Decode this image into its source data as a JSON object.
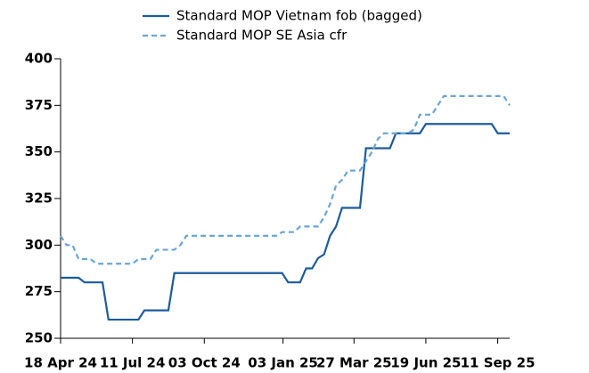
{
  "chart_data": {
    "type": "line",
    "x": [
      "2024-04-18",
      "2024-04-25",
      "2024-05-02",
      "2024-05-09",
      "2024-05-16",
      "2024-05-23",
      "2024-05-30",
      "2024-06-06",
      "2024-06-13",
      "2024-06-20",
      "2024-06-27",
      "2024-07-04",
      "2024-07-11",
      "2024-07-18",
      "2024-07-25",
      "2024-08-01",
      "2024-08-08",
      "2024-08-15",
      "2024-08-22",
      "2024-08-29",
      "2024-09-05",
      "2024-09-12",
      "2024-09-19",
      "2024-09-26",
      "2024-10-03",
      "2024-10-10",
      "2024-10-17",
      "2024-10-24",
      "2024-10-31",
      "2024-11-07",
      "2024-11-14",
      "2024-11-21",
      "2024-11-28",
      "2024-12-05",
      "2024-12-12",
      "2024-12-19",
      "2024-12-26",
      "2025-01-02",
      "2025-01-09",
      "2025-01-16",
      "2025-01-23",
      "2025-01-30",
      "2025-02-06",
      "2025-02-13",
      "2025-02-20",
      "2025-02-27",
      "2025-03-06",
      "2025-03-13",
      "2025-03-20",
      "2025-03-27",
      "2025-04-03",
      "2025-04-10",
      "2025-04-17",
      "2025-04-24",
      "2025-05-01",
      "2025-05-08",
      "2025-05-15",
      "2025-05-22",
      "2025-05-29",
      "2025-06-05",
      "2025-06-12",
      "2025-06-19",
      "2025-06-26",
      "2025-07-03",
      "2025-07-10",
      "2025-07-17",
      "2025-07-24",
      "2025-07-31",
      "2025-08-07",
      "2025-08-14",
      "2025-08-21",
      "2025-08-28",
      "2025-09-04",
      "2025-09-11",
      "2025-09-18",
      "2025-09-25"
    ],
    "series": [
      {
        "name": "Standard MOP Vietnam fob (bagged)",
        "color": "#1c5c9c",
        "dashed": false,
        "values": [
          282.5,
          282.5,
          282.5,
          282.5,
          280,
          280,
          280,
          280,
          260,
          260,
          260,
          260,
          260,
          260,
          265,
          265,
          265,
          265,
          265,
          285,
          285,
          285,
          285,
          285,
          285,
          285,
          285,
          285,
          285,
          285,
          285,
          285,
          285,
          285,
          285,
          285,
          285,
          285,
          280,
          280,
          280,
          287.5,
          287.5,
          293,
          295,
          305,
          310,
          320,
          320,
          320,
          320,
          352,
          352,
          352,
          352,
          352,
          360,
          360,
          360,
          360,
          360,
          365,
          365,
          365,
          365,
          365,
          365,
          365,
          365,
          365,
          365,
          365,
          365,
          360,
          360,
          360
        ]
      },
      {
        "name": "Standard MOP SE Asia cfr",
        "color": "#6aa6d8",
        "dashed": true,
        "values": [
          305,
          300,
          300,
          292.5,
          292.5,
          292.5,
          290,
          290,
          290,
          290,
          290,
          290,
          290,
          292.5,
          292.5,
          292.5,
          297.5,
          297.5,
          297.5,
          297.5,
          300,
          305,
          305,
          305,
          305,
          305,
          305,
          305,
          305,
          305,
          305,
          305,
          305,
          305,
          305,
          305,
          305,
          307,
          307,
          307,
          310,
          310,
          310,
          310,
          315,
          322,
          332,
          335,
          340,
          340,
          340,
          345,
          350,
          357,
          360,
          360,
          360,
          360,
          360,
          362,
          370,
          370,
          370,
          375,
          380,
          380,
          380,
          380,
          380,
          380,
          380,
          380,
          380,
          380,
          380,
          375
        ]
      }
    ],
    "xlim": [
      "2024-04-18",
      "2025-09-25"
    ],
    "xticks": [
      {
        "value": "2024-04-18",
        "label": "18 Apr 24"
      },
      {
        "value": "2024-07-11",
        "label": "11 Jul 24"
      },
      {
        "value": "2024-10-03",
        "label": "03 Oct 24"
      },
      {
        "value": "2025-01-03",
        "label": "03 Jan 25"
      },
      {
        "value": "2025-03-27",
        "label": "27 Mar 25"
      },
      {
        "value": "2025-06-19",
        "label": "19 Jun 25"
      },
      {
        "value": "2025-09-11",
        "label": "11 Sep 25"
      }
    ],
    "ylim": [
      250,
      400
    ],
    "yticks": [
      250,
      275,
      300,
      325,
      350,
      375,
      400
    ]
  }
}
